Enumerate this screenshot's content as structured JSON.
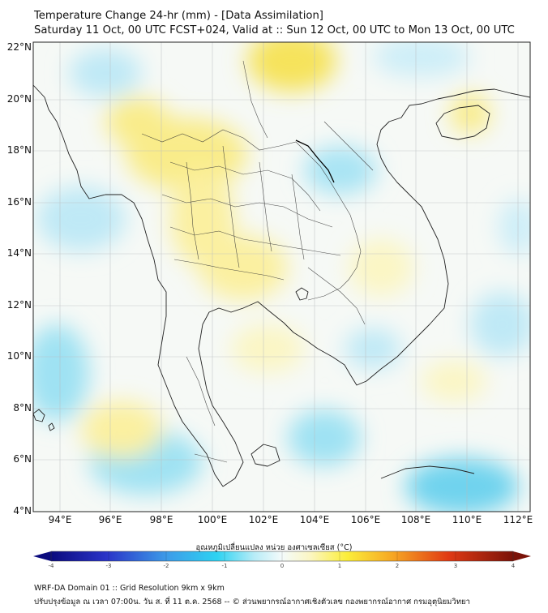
{
  "title": {
    "line1": "Temperature Change 24-hr (mm) - [Data Assimilation]",
    "line2": "Saturday 11 Oct, 00 UTC FCST+024, Valid at :: Sun 12 Oct, 00 UTC to Mon 13 Oct, 00 UTC"
  },
  "axes": {
    "lat_labels": [
      "22°N",
      "20°N",
      "18°N",
      "16°N",
      "14°N",
      "12°N",
      "10°N",
      "8°N",
      "6°N",
      "4°N"
    ],
    "lon_labels": [
      "94°E",
      "96°E",
      "98°E",
      "100°E",
      "102°E",
      "104°E",
      "106°E",
      "108°E",
      "110°E",
      "112°E"
    ]
  },
  "colorbar": {
    "label": "อุณหภูมิเปลี่ยนแปลง หน่วย องศาเซลเซียส (°C)",
    "ticks": [
      "-4",
      "-3",
      "-2",
      "-1",
      "0",
      "1",
      "2",
      "3",
      "4"
    ],
    "range": [
      -4,
      4
    ],
    "colors": {
      "cold_end": "#0b0b7e",
      "cyan": "#2ed3f2",
      "neutral": "#f4fbfb",
      "yellow": "#fbee3a",
      "hot_end": "#7a1208"
    }
  },
  "footer": {
    "line1": "WRF-DA Domain 01 :: Grid Resolution 9km x 9km",
    "line2": "ปรับปรุงข้อมูล ณ เวลา 07:00น. วัน ส. ที่ 11 ต.ค. 2568 -- © ส่วนพยากรณ์อากาศเชิงตัวเลข กองพยากรณ์อากาศ กรมอุตุนิยมวิทยา"
  },
  "field": {
    "palette": {
      "pale_blue": "#cdeef8",
      "light_blue": "#9fe2f3",
      "blue": "#6fd3ee",
      "pale_yellow": "#fbf6c4",
      "yellow": "#f9ec8a",
      "strong_yellow": "#f6e35c"
    }
  }
}
